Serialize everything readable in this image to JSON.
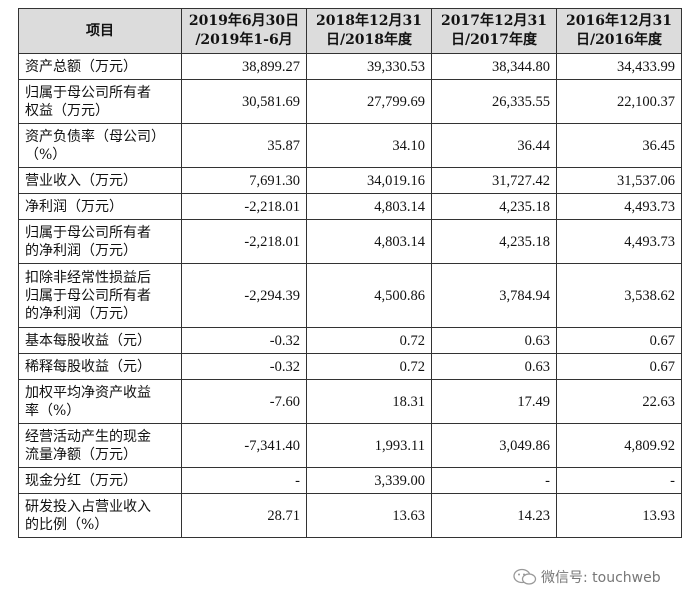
{
  "headers": [
    "项目",
    "2019年6月30日\n/2019年1-6月",
    "2018年12月31\n日/2018年度",
    "2017年12月31\n日/2017年度",
    "2016年12月31\n日/2016年度"
  ],
  "rows": [
    {
      "label": "资产总额（万元）",
      "values": [
        "38,899.27",
        "39,330.53",
        "38,344.80",
        "34,433.99"
      ]
    },
    {
      "label": "归属于母公司所有者\n权益（万元）",
      "values": [
        "30,581.69",
        "27,799.69",
        "26,335.55",
        "22,100.37"
      ]
    },
    {
      "label": "资产负债率（母公司）\n（%）",
      "values": [
        "35.87",
        "34.10",
        "36.44",
        "36.45"
      ]
    },
    {
      "label": "营业收入（万元）",
      "values": [
        "7,691.30",
        "34,019.16",
        "31,727.42",
        "31,537.06"
      ]
    },
    {
      "label": "净利润（万元）",
      "values": [
        "-2,218.01",
        "4,803.14",
        "4,235.18",
        "4,493.73"
      ]
    },
    {
      "label": "归属于母公司所有者\n的净利润（万元）",
      "values": [
        "-2,218.01",
        "4,803.14",
        "4,235.18",
        "4,493.73"
      ]
    },
    {
      "label": "扣除非经常性损益后\n归属于母公司所有者\n的净利润（万元）",
      "values": [
        "-2,294.39",
        "4,500.86",
        "3,784.94",
        "3,538.62"
      ]
    },
    {
      "label": "基本每股收益（元）",
      "values": [
        "-0.32",
        "0.72",
        "0.63",
        "0.67"
      ]
    },
    {
      "label": "稀释每股收益（元）",
      "values": [
        "-0.32",
        "0.72",
        "0.63",
        "0.67"
      ]
    },
    {
      "label": "加权平均净资产收益\n率（%）",
      "values": [
        "-7.60",
        "18.31",
        "17.49",
        "22.63"
      ]
    },
    {
      "label": "经营活动产生的现金\n流量净额（万元）",
      "values": [
        "-7,341.40",
        "1,993.11",
        "3,049.86",
        "4,809.92"
      ]
    },
    {
      "label": "现金分红（万元）",
      "values": [
        "-",
        "3,339.00",
        "-",
        "-"
      ]
    },
    {
      "label": "研发投入占营业收入\n的比例（%）",
      "values": [
        "28.71",
        "13.63",
        "14.23",
        "13.93"
      ]
    }
  ],
  "watermark": {
    "text": "微信号: touchweb",
    "icon": "wechat-icon"
  }
}
